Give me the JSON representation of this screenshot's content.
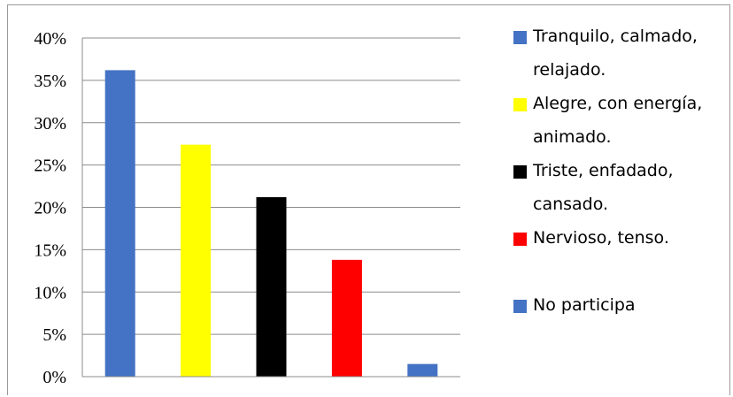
{
  "chart_data": {
    "type": "bar",
    "title": "",
    "xlabel": "",
    "ylabel": "",
    "ylim": [
      0,
      40
    ],
    "yticks": [
      "0%",
      "5%",
      "10%",
      "15%",
      "20%",
      "25%",
      "30%",
      "35%",
      "40%"
    ],
    "categories": [
      "Tranquilo, calmado, relajado.",
      "Alegre, con energía, animado.",
      "Triste, enfadado, cansado.",
      "Nervioso, tenso.",
      "No participa"
    ],
    "values": [
      36.2,
      27.4,
      21.2,
      13.8,
      1.5
    ],
    "colors": [
      "#4472C4",
      "#FFFF00",
      "#000000",
      "#FF0000",
      "#4472C4"
    ],
    "grid": true,
    "legend_position": "right"
  },
  "legend": {
    "items": [
      {
        "lines": [
          "Tranquilo, calmado,",
          "relajado."
        ],
        "color": "#4472C4"
      },
      {
        "lines": [
          "Alegre, con energía,",
          "animado."
        ],
        "color": "#FFFF00"
      },
      {
        "lines": [
          "Triste, enfadado,",
          "cansado."
        ],
        "color": "#000000"
      },
      {
        "lines": [
          "Nervioso, tenso."
        ],
        "color": "#FF0000"
      },
      {
        "lines": [
          "No participa"
        ],
        "color": "#4472C4"
      }
    ]
  }
}
